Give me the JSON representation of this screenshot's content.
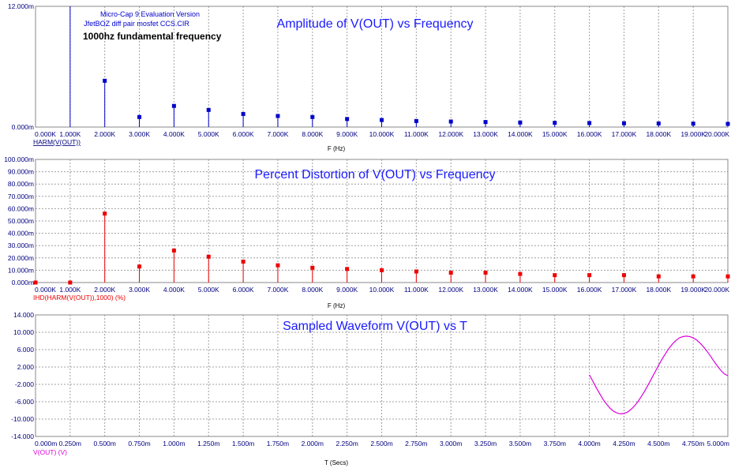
{
  "colors": {
    "frame": "#888888",
    "grid": "#a0a0a0",
    "tick_text": "#000080",
    "title": "#1a1aff",
    "series1": "#0000cc",
    "series2": "#ee0000",
    "series3": "#dd00dd"
  },
  "info": {
    "line1": "Micro-Cap 9 Evaluation Version",
    "line2": "JfetBOZ diff pair mosfet CCS.CIR",
    "line3": "1000hz fundamental frequency"
  },
  "chart_data": [
    {
      "type": "scatter",
      "style": "stem",
      "title": "Amplitude of V(OUT) vs Frequency",
      "xlabel": "F (Hz)",
      "ylabel": "",
      "xlim": [
        0,
        20000
      ],
      "ylim": [
        0,
        12
      ],
      "x_tick_labels": [
        "0.000K",
        "1.000K",
        "2.000K",
        "3.000K",
        "4.000K",
        "5.000K",
        "6.000K",
        "7.000K",
        "8.000K",
        "9.000K",
        "10.000K",
        "11.000K",
        "12.000K",
        "13.000K",
        "14.000K",
        "15.000K",
        "16.000K",
        "17.000K",
        "18.000K",
        "19.000K",
        "20.000K"
      ],
      "y_tick_labels": [
        "0.000m",
        "12.000m"
      ],
      "y_tick_values": [
        0,
        12
      ],
      "grid": true,
      "series": [
        {
          "name": "HARM(V(OUT))",
          "x": [
            1000,
            2000,
            3000,
            4000,
            5000,
            6000,
            7000,
            8000,
            9000,
            10000,
            11000,
            12000,
            13000,
            14000,
            15000,
            16000,
            17000,
            18000,
            19000,
            20000
          ],
          "y": [
            12.0,
            4.6,
            1.0,
            2.1,
            1.7,
            1.3,
            1.1,
            1.0,
            0.8,
            0.7,
            0.6,
            0.55,
            0.5,
            0.45,
            0.42,
            0.4,
            0.38,
            0.36,
            0.34,
            0.32
          ],
          "markers": [
            false,
            true,
            true,
            true,
            true,
            true,
            true,
            true,
            true,
            true,
            true,
            true,
            true,
            true,
            true,
            true,
            true,
            true,
            true,
            true
          ]
        }
      ]
    },
    {
      "type": "scatter",
      "style": "stem",
      "title": "Percent Distortion of V(OUT) vs Frequency",
      "xlabel": "F (Hz)",
      "ylabel": "",
      "xlim": [
        0,
        20000
      ],
      "ylim": [
        0,
        100
      ],
      "x_tick_labels": [
        "0.000K",
        "1.000K",
        "2.000K",
        "3.000K",
        "4.000K",
        "5.000K",
        "6.000K",
        "7.000K",
        "8.000K",
        "9.000K",
        "10.000K",
        "11.000K",
        "12.000K",
        "13.000K",
        "14.000K",
        "15.000K",
        "16.000K",
        "17.000K",
        "18.000K",
        "19.000K",
        "20.000K"
      ],
      "y_tick_labels": [
        "0.000m",
        "10.000m",
        "20.000m",
        "30.000m",
        "40.000m",
        "50.000m",
        "60.000m",
        "70.000m",
        "80.000m",
        "90.000m",
        "100.000m"
      ],
      "y_tick_values": [
        0,
        10,
        20,
        30,
        40,
        50,
        60,
        70,
        80,
        90,
        100
      ],
      "grid": true,
      "series": [
        {
          "name": "IHD(HARM(V(OUT)),1000) (%)",
          "x": [
            0,
            1000,
            2000,
            3000,
            4000,
            5000,
            6000,
            7000,
            8000,
            9000,
            10000,
            11000,
            12000,
            13000,
            14000,
            15000,
            16000,
            17000,
            18000,
            19000,
            20000
          ],
          "y": [
            0,
            0,
            56,
            13,
            26,
            21,
            17,
            14,
            12,
            11,
            10,
            9,
            8,
            8,
            7,
            6,
            6,
            6,
            5,
            5,
            5
          ],
          "markers": [
            true,
            true,
            true,
            true,
            true,
            true,
            true,
            true,
            true,
            true,
            true,
            true,
            true,
            true,
            true,
            true,
            true,
            true,
            true,
            true,
            true
          ]
        }
      ]
    },
    {
      "type": "line",
      "title": "Sampled Waveform  V(OUT) vs T",
      "xlabel": "T (Secs)",
      "ylabel": "",
      "xlim": [
        0,
        5
      ],
      "ylim": [
        -14,
        14
      ],
      "x_tick_labels": [
        "0.000m",
        "0.250m",
        "0.500m",
        "0.750m",
        "1.000m",
        "1.250m",
        "1.500m",
        "1.750m",
        "2.000m",
        "2.250m",
        "2.500m",
        "2.750m",
        "3.000m",
        "3.250m",
        "3.500m",
        "3.750m",
        "4.000m",
        "4.250m",
        "4.500m",
        "4.750m",
        "5.000m"
      ],
      "y_tick_labels": [
        "-14.000",
        "-10.000",
        "-6.000",
        "-2.000",
        "2.000",
        "6.000",
        "10.000",
        "14.000"
      ],
      "y_tick_values": [
        -14,
        -10,
        -6,
        -2,
        2,
        6,
        10,
        14
      ],
      "grid": true,
      "series": [
        {
          "name": "V(OUT) (V)",
          "x": [
            4.0,
            4.025,
            4.05,
            4.075,
            4.1,
            4.125,
            4.15,
            4.175,
            4.2,
            4.225,
            4.25,
            4.275,
            4.3,
            4.325,
            4.35,
            4.375,
            4.4,
            4.425,
            4.45,
            4.475,
            4.5,
            4.525,
            4.55,
            4.575,
            4.6,
            4.625,
            4.65,
            4.675,
            4.7,
            4.725,
            4.75,
            4.775,
            4.8,
            4.825,
            4.85,
            4.875,
            4.9,
            4.925,
            4.95,
            4.975,
            5.0
          ],
          "y": [
            0.2,
            -1.3,
            -2.8,
            -4.2,
            -5.5,
            -6.6,
            -7.5,
            -8.2,
            -8.6,
            -8.8,
            -8.7,
            -8.4,
            -7.8,
            -7.0,
            -6.0,
            -4.8,
            -3.5,
            -2.1,
            -0.6,
            0.9,
            2.4,
            3.8,
            5.1,
            6.3,
            7.3,
            8.1,
            8.7,
            9.0,
            9.1,
            9.0,
            8.7,
            8.2,
            7.5,
            6.6,
            5.6,
            4.5,
            3.3,
            2.2,
            1.2,
            0.4,
            0.0
          ]
        }
      ]
    }
  ]
}
